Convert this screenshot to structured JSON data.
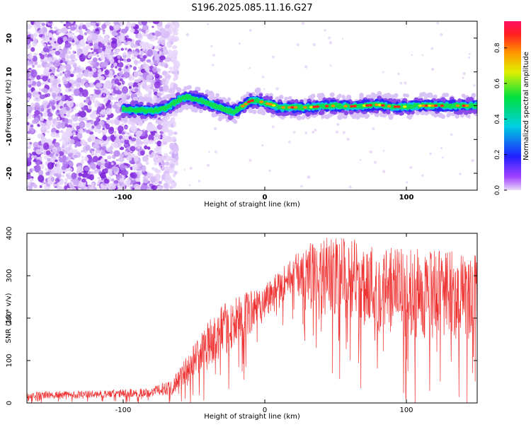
{
  "title": "S196.2025.085.11.16.G27",
  "chart_data": [
    {
      "type": "heatmap",
      "xlabel": "Height of straight line (km)",
      "ylabel": "Frequency (Hz)",
      "xlim": [
        -168,
        150
      ],
      "ylim": [
        -25,
        25
      ],
      "x_ticks": [
        -100,
        0,
        100
      ],
      "y_ticks": [
        -20,
        -10,
        0,
        10,
        20
      ],
      "colorbar": {
        "label": "Normalized spectral amplitude",
        "range": [
          0,
          0.95
        ],
        "ticks": [
          0,
          0.2,
          0.4,
          0.6,
          0.8
        ]
      },
      "ridge": {
        "x": [
          -100,
          -90,
          -80,
          -70,
          -62,
          -55,
          -45,
          -35,
          -28,
          -22,
          -15,
          -10,
          -5,
          0,
          5,
          10,
          20,
          30,
          40,
          50,
          60,
          70,
          80,
          90,
          100,
          110,
          120,
          130,
          140,
          150
        ],
        "y": [
          -1.0,
          -1.2,
          -1.5,
          -0.8,
          1.5,
          2.5,
          1.5,
          0.0,
          -1.2,
          -1.8,
          0.0,
          1.5,
          1.5,
          0.8,
          0.3,
          -0.5,
          -0.5,
          -0.5,
          -0.2,
          0.0,
          -0.2,
          0.0,
          0.3,
          -0.3,
          -0.3,
          0.0,
          0.0,
          0.0,
          0.0,
          0.0
        ]
      }
    },
    {
      "type": "line",
      "xlabel": "Height of straight line (km)",
      "ylabel": "SNR (10 * v/v)",
      "xlim": [
        -168,
        150
      ],
      "ylim": [
        0,
        400
      ],
      "x_ticks": [
        -100,
        0,
        100
      ],
      "y_ticks": [
        0,
        100,
        200,
        300,
        400
      ],
      "color": "#ee3333",
      "trend": {
        "x": [
          -168,
          -120,
          -80,
          -65,
          -50,
          -40,
          -30,
          -20,
          -10,
          0,
          10,
          20,
          30,
          40,
          60,
          80,
          100,
          120,
          150
        ],
        "mean": [
          18,
          20,
          25,
          40,
          100,
          140,
          170,
          190,
          215,
          240,
          275,
          300,
          310,
          300,
          295,
          270,
          260,
          255,
          250
        ],
        "spread": [
          12,
          12,
          15,
          25,
          55,
          70,
          80,
          80,
          70,
          60,
          55,
          60,
          90,
          120,
          130,
          140,
          140,
          140,
          140
        ]
      }
    }
  ]
}
